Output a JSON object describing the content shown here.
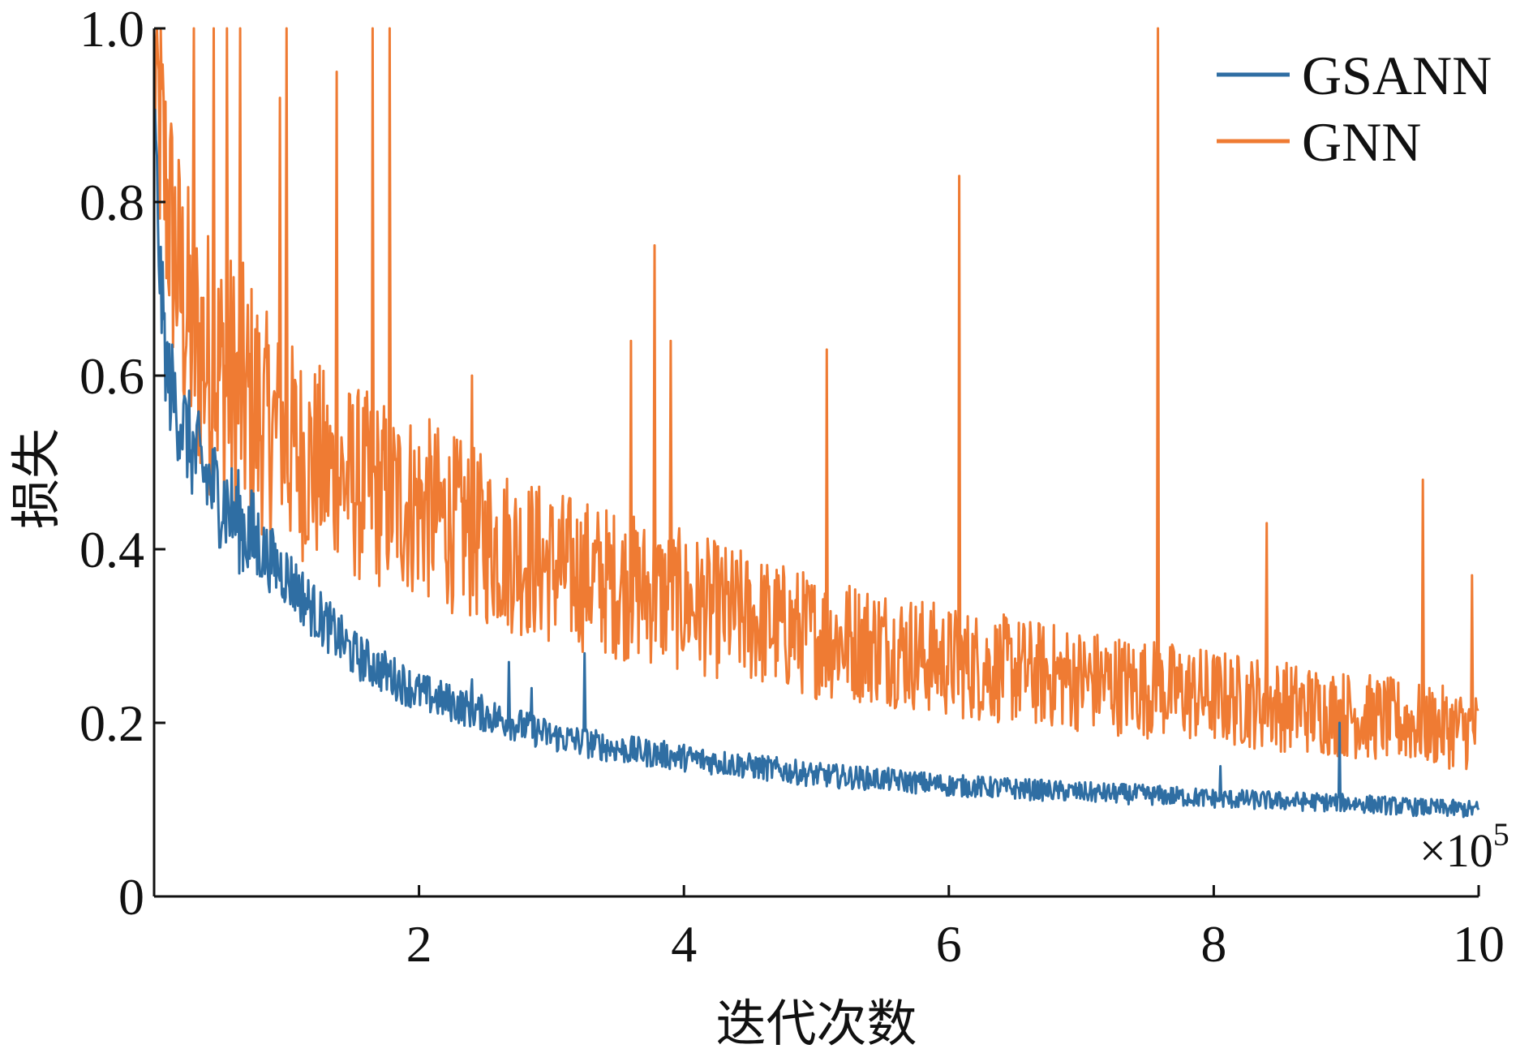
{
  "chart_data": {
    "type": "line",
    "title": "",
    "xlabel": "迭代次数",
    "ylabel": "损失",
    "x_multiplier_label": "×10",
    "x_multiplier_exponent": "5",
    "xlim": [
      0.0,
      10.0
    ],
    "ylim": [
      0.0,
      1.0
    ],
    "x_ticks": [
      2,
      4,
      6,
      8,
      10
    ],
    "x_tick_labels": [
      "2",
      "4",
      "6",
      "8",
      "10"
    ],
    "y_ticks": [
      0,
      0.2,
      0.4,
      0.6,
      0.8,
      1.0
    ],
    "y_tick_labels": [
      "0",
      "0.2",
      "0.4",
      "0.6",
      "0.8",
      "1.0"
    ],
    "grid": false,
    "legend_position": "top-right",
    "series": [
      {
        "name": "GSANN",
        "color": "#2f6ea3",
        "x": [
          0.0,
          0.05,
          0.1,
          0.2,
          0.3,
          0.4,
          0.5,
          0.6,
          0.8,
          1.0,
          1.2,
          1.5,
          2.0,
          2.5,
          3.0,
          3.5,
          4.0,
          4.5,
          5.0,
          5.5,
          6.0,
          6.5,
          7.0,
          7.5,
          8.0,
          8.5,
          9.0,
          9.5,
          10.0
        ],
        "y": [
          0.9,
          0.7,
          0.6,
          0.55,
          0.51,
          0.48,
          0.46,
          0.44,
          0.4,
          0.37,
          0.33,
          0.28,
          0.235,
          0.21,
          0.185,
          0.17,
          0.16,
          0.15,
          0.14,
          0.135,
          0.128,
          0.124,
          0.12,
          0.117,
          0.113,
          0.11,
          0.108,
          0.103,
          0.1
        ],
        "spikes": [
          {
            "x": 2.4,
            "y": 0.25
          },
          {
            "x": 2.68,
            "y": 0.27
          },
          {
            "x": 2.85,
            "y": 0.24
          },
          {
            "x": 3.25,
            "y": 0.28
          },
          {
            "x": 8.05,
            "y": 0.15
          },
          {
            "x": 8.95,
            "y": 0.2
          }
        ]
      },
      {
        "name": "GNN",
        "color": "#ef7b33",
        "x": [
          0.0,
          0.1,
          0.2,
          0.3,
          0.5,
          0.8,
          1.0,
          1.3,
          1.6,
          2.0,
          2.5,
          3.0,
          3.5,
          4.0,
          4.5,
          5.0,
          5.5,
          6.0,
          6.5,
          7.0,
          7.5,
          8.0,
          8.5,
          9.0,
          9.5,
          10.0
        ],
        "y": [
          0.95,
          0.8,
          0.7,
          0.64,
          0.6,
          0.55,
          0.52,
          0.49,
          0.47,
          0.45,
          0.41,
          0.38,
          0.36,
          0.34,
          0.32,
          0.3,
          0.29,
          0.27,
          0.26,
          0.25,
          0.24,
          0.23,
          0.22,
          0.21,
          0.2,
          0.19
        ],
        "spikes": [
          {
            "x": 0.3,
            "y": 1.0
          },
          {
            "x": 0.45,
            "y": 1.0
          },
          {
            "x": 0.55,
            "y": 1.0
          },
          {
            "x": 0.65,
            "y": 1.0
          },
          {
            "x": 0.95,
            "y": 0.92
          },
          {
            "x": 1.0,
            "y": 1.0
          },
          {
            "x": 1.38,
            "y": 0.95
          },
          {
            "x": 1.65,
            "y": 1.0
          },
          {
            "x": 1.78,
            "y": 1.0
          },
          {
            "x": 2.4,
            "y": 0.6
          },
          {
            "x": 3.6,
            "y": 0.64
          },
          {
            "x": 3.78,
            "y": 0.75
          },
          {
            "x": 3.9,
            "y": 0.64
          },
          {
            "x": 5.08,
            "y": 0.63
          },
          {
            "x": 6.08,
            "y": 0.83
          },
          {
            "x": 7.58,
            "y": 1.0
          },
          {
            "x": 8.4,
            "y": 0.43
          },
          {
            "x": 9.58,
            "y": 0.48
          },
          {
            "x": 9.95,
            "y": 0.37
          }
        ]
      }
    ]
  }
}
